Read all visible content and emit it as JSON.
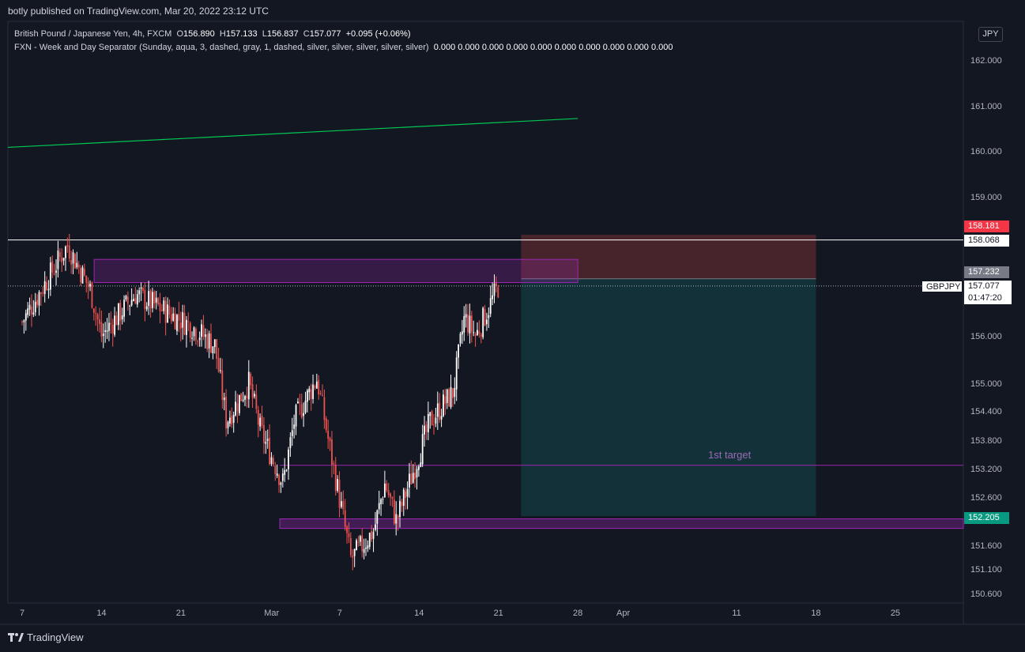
{
  "header": {
    "published": "botly published on TradingView.com, Mar 20, 2022 23:12 UTC"
  },
  "legend": {
    "symbol": "British Pound / Japanese Yen, 4h, FXCM",
    "open_label": "O",
    "open": "156.890",
    "high_label": "H",
    "high": "157.133",
    "low_label": "L",
    "low": "156.837",
    "close_label": "C",
    "close": "157.077",
    "change": "+0.095 (+0.06%)",
    "indicator": "FXN - Week and Day Separator (Sunday, aqua, 3, dashed, gray, 1, dashed, silver, silver, silver, silver, silver)",
    "indicator_values": "0.000  0.000  0.000  0.000  0.000  0.000  0.000  0.000  0.000  0.000"
  },
  "currency_button": "JPY",
  "annotation": "1st target",
  "price_tags": {
    "stop": "158.181",
    "resistance": "158.068",
    "entry": "157.232",
    "symbol": "GBPJPY",
    "last": "157.077",
    "countdown": "01:47:20",
    "target": "152.205"
  },
  "footer": {
    "brand": "TradingView"
  },
  "colors": {
    "background": "#131722",
    "up": "#ffffff",
    "down": "#ef5350",
    "zone": "#9c27b0",
    "trend": "#00c853",
    "stop_zone": "#4a252c",
    "target_zone": "#12333a",
    "stop_tag": "#f23645",
    "target_tag": "#089981",
    "entry_tag": "#787b86"
  },
  "chart_data": {
    "type": "candlestick",
    "instrument": "GBPJPY",
    "timeframe": "4h",
    "y_axis": {
      "ticks": [
        "162.000",
        "161.000",
        "160.000",
        "159.000",
        "156.000",
        "155.000",
        "154.400",
        "153.800",
        "153.200",
        "152.600",
        "151.600",
        "151.100",
        "150.600"
      ],
      "range": [
        150.3,
        162.6
      ]
    },
    "x_axis": {
      "ticks": [
        "7",
        "14",
        "21",
        "Mar",
        "7",
        "14",
        "21",
        "28",
        "Apr",
        "11",
        "18",
        "25"
      ],
      "range": [
        "2022-02-05",
        "2022-04-27"
      ]
    },
    "trend_line": {
      "start": [
        "2022-02-05",
        160.08
      ],
      "end": [
        "2022-03-28",
        160.72
      ]
    },
    "horizontal_line": {
      "price": 158.068
    },
    "supply_zone": {
      "from": "2022-02-13",
      "to": "2022-03-28",
      "low": 157.15,
      "high": 157.65
    },
    "demand_zone": {
      "from": "2022-03-02",
      "to": "2022-04-27",
      "low": 151.95,
      "high": 152.1
    },
    "target_line": {
      "from": "2022-03-02",
      "price": 153.27
    },
    "short_position": {
      "from": "2022-03-23",
      "to": "2022-04-18",
      "entry": 157.232,
      "stop": 158.181,
      "target": 152.205
    },
    "series": [
      {
        "name": "GBPJPY",
        "path": [
          [
            156.3,
            "2022-02-07"
          ],
          [
            157.95,
            "2022-02-11"
          ],
          [
            157.0,
            "2022-02-13"
          ],
          [
            156.0,
            "2022-02-14"
          ],
          [
            156.9,
            "2022-02-17"
          ],
          [
            156.2,
            "2022-02-22"
          ],
          [
            155.8,
            "2022-02-24"
          ],
          [
            154.2,
            "2022-02-25"
          ],
          [
            155.0,
            "2022-02-27"
          ],
          [
            154.0,
            "2022-02-28"
          ],
          [
            152.9,
            "2022-03-02"
          ],
          [
            154.2,
            "2022-03-03"
          ],
          [
            155.1,
            "2022-03-05"
          ],
          [
            153.8,
            "2022-03-06"
          ],
          [
            151.3,
            "2022-03-08"
          ],
          [
            151.9,
            "2022-03-10"
          ],
          [
            152.9,
            "2022-03-11"
          ],
          [
            152.1,
            "2022-03-12"
          ],
          [
            153.5,
            "2022-03-14"
          ],
          [
            154.2,
            "2022-03-15"
          ],
          [
            154.8,
            "2022-03-17"
          ],
          [
            156.4,
            "2022-03-18"
          ],
          [
            156.0,
            "2022-03-19"
          ],
          [
            157.077,
            "2022-03-21"
          ]
        ]
      }
    ]
  }
}
